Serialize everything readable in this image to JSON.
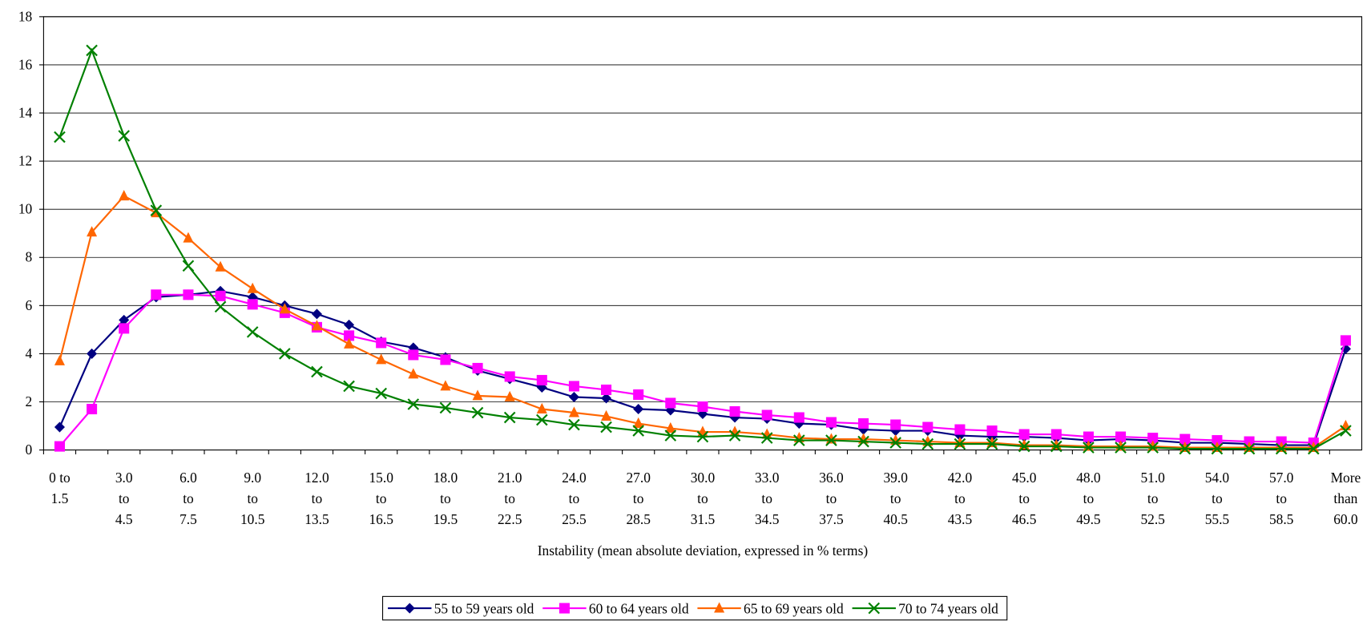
{
  "chart_data": {
    "type": "line",
    "x_label": "Instability (mean absolute deviation, expressed in % terms)",
    "categories": [
      "0 to\n1.5",
      null,
      "3.0\nto\n4.5",
      null,
      "6.0\nto\n7.5",
      null,
      "9.0\nto\n10.5",
      null,
      "12.0\nto\n13.5",
      null,
      "15.0\nto\n16.5",
      null,
      "18.0\nto\n19.5",
      null,
      "21.0\nto\n22.5",
      null,
      "24.0\nto\n25.5",
      null,
      "27.0\nto\n28.5",
      null,
      "30.0\nto\n31.5",
      null,
      "33.0\nto\n34.5",
      null,
      "36.0\nto\n37.5",
      null,
      "39.0\nto\n40.5",
      null,
      "42.0\nto\n43.5",
      null,
      "45.0\nto\n46.5",
      null,
      "48.0\nto\n49.5",
      null,
      "51.0\nto\n52.5",
      null,
      "54.0\nto\n55.5",
      null,
      "57.0\nto\n58.5",
      null,
      "More\nthan\n60.0"
    ],
    "series": [
      {
        "name": "55 to 59 years old",
        "color": "#000080",
        "marker": "diamond",
        "values": [
          0.95,
          4.0,
          5.4,
          6.35,
          6.45,
          6.6,
          6.35,
          6.0,
          5.65,
          5.2,
          4.5,
          4.25,
          3.85,
          3.3,
          2.95,
          2.6,
          2.2,
          2.15,
          1.7,
          1.65,
          1.5,
          1.35,
          1.3,
          1.1,
          1.05,
          0.85,
          0.8,
          0.8,
          0.6,
          0.55,
          0.55,
          0.5,
          0.4,
          0.45,
          0.4,
          0.3,
          0.3,
          0.25,
          0.2,
          0.2,
          4.2
        ]
      },
      {
        "name": "60 to 64 years old",
        "color": "#ff00ff",
        "marker": "square",
        "values": [
          0.15,
          1.7,
          5.05,
          6.45,
          6.45,
          6.4,
          6.05,
          5.7,
          5.1,
          4.75,
          4.45,
          3.95,
          3.75,
          3.4,
          3.05,
          2.9,
          2.65,
          2.5,
          2.3,
          1.95,
          1.8,
          1.6,
          1.45,
          1.35,
          1.15,
          1.1,
          1.05,
          0.95,
          0.85,
          0.8,
          0.65,
          0.65,
          0.55,
          0.55,
          0.5,
          0.45,
          0.4,
          0.35,
          0.35,
          0.3,
          4.55
        ]
      },
      {
        "name": "65 to 69 years old",
        "color": "#ff6600",
        "marker": "triangle",
        "values": [
          3.7,
          9.05,
          10.55,
          9.85,
          8.8,
          7.6,
          6.7,
          5.85,
          5.15,
          4.4,
          3.75,
          3.15,
          2.65,
          2.25,
          2.2,
          1.7,
          1.55,
          1.4,
          1.1,
          0.9,
          0.75,
          0.75,
          0.65,
          0.5,
          0.45,
          0.45,
          0.4,
          0.35,
          0.3,
          0.3,
          0.2,
          0.2,
          0.15,
          0.15,
          0.15,
          0.1,
          0.1,
          0.1,
          0.1,
          0.1,
          1.0
        ]
      },
      {
        "name": "70 to 74 years old",
        "color": "#008000",
        "marker": "x",
        "values": [
          13.0,
          16.6,
          13.05,
          9.95,
          7.65,
          5.95,
          4.9,
          4.0,
          3.25,
          2.65,
          2.35,
          1.9,
          1.75,
          1.55,
          1.35,
          1.25,
          1.05,
          0.95,
          0.8,
          0.6,
          0.55,
          0.6,
          0.5,
          0.4,
          0.4,
          0.35,
          0.3,
          0.25,
          0.25,
          0.25,
          0.15,
          0.15,
          0.1,
          0.1,
          0.1,
          0.05,
          0.05,
          0.05,
          0.05,
          0.05,
          0.8
        ]
      }
    ],
    "ylim": [
      0,
      18
    ],
    "yticks": [
      0,
      2,
      4,
      6,
      8,
      10,
      12,
      14,
      16,
      18
    ],
    "grid": true,
    "legend": "bottom"
  }
}
